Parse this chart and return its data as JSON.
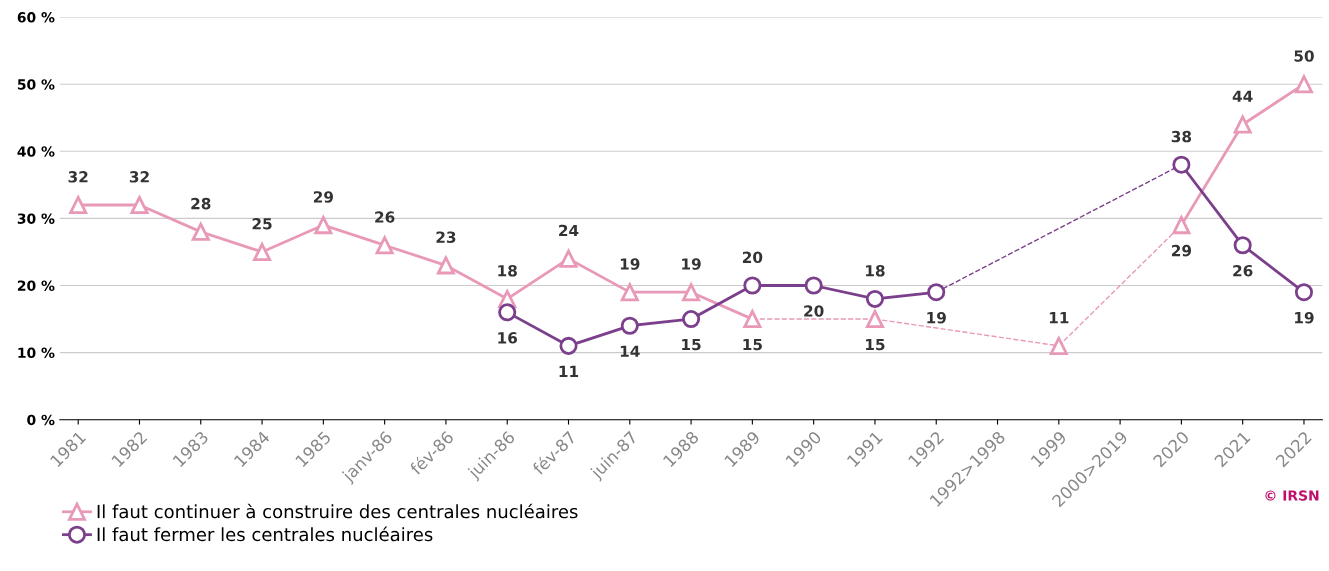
{
  "chart_data": {
    "type": "line",
    "categories": [
      "1981",
      "1982",
      "1983",
      "1984",
      "1985",
      "janv-86",
      "fév-86",
      "juin-86",
      "fév-87",
      "juin-87",
      "1988",
      "1989",
      "1990",
      "1991",
      "1992",
      "1992>1998",
      "1999",
      "2000>2019",
      "2020",
      "2021",
      "2022"
    ],
    "series": [
      {
        "name": "Il faut continuer à construire des centrales nucléaires",
        "color": "#e899b8",
        "marker": "triangle",
        "values": [
          32,
          32,
          28,
          25,
          29,
          26,
          23,
          18,
          24,
          19,
          19,
          15,
          null,
          15,
          null,
          null,
          11,
          null,
          29,
          44,
          50
        ]
      },
      {
        "name": "Il faut fermer les centrales nucléaires",
        "color": "#7b3f8c",
        "marker": "circle",
        "values": [
          null,
          null,
          null,
          null,
          null,
          null,
          null,
          16,
          11,
          14,
          15,
          20,
          20,
          18,
          19,
          null,
          null,
          null,
          38,
          26,
          19
        ]
      }
    ],
    "ylim": [
      0,
      60
    ],
    "yticks": [
      {
        "value": 0,
        "label": "0 %"
      },
      {
        "value": 10,
        "label": "10 %"
      },
      {
        "value": 20,
        "label": "20 %"
      },
      {
        "value": 30,
        "label": "30 %"
      },
      {
        "value": 40,
        "label": "40 %"
      },
      {
        "value": 50,
        "label": "50 %"
      },
      {
        "value": 60,
        "label": "60 %"
      }
    ],
    "grid": "y",
    "legend": "bottom left",
    "data_labels": true,
    "line_style": "solid",
    "annotations": [
      "© IRSN"
    ]
  }
}
